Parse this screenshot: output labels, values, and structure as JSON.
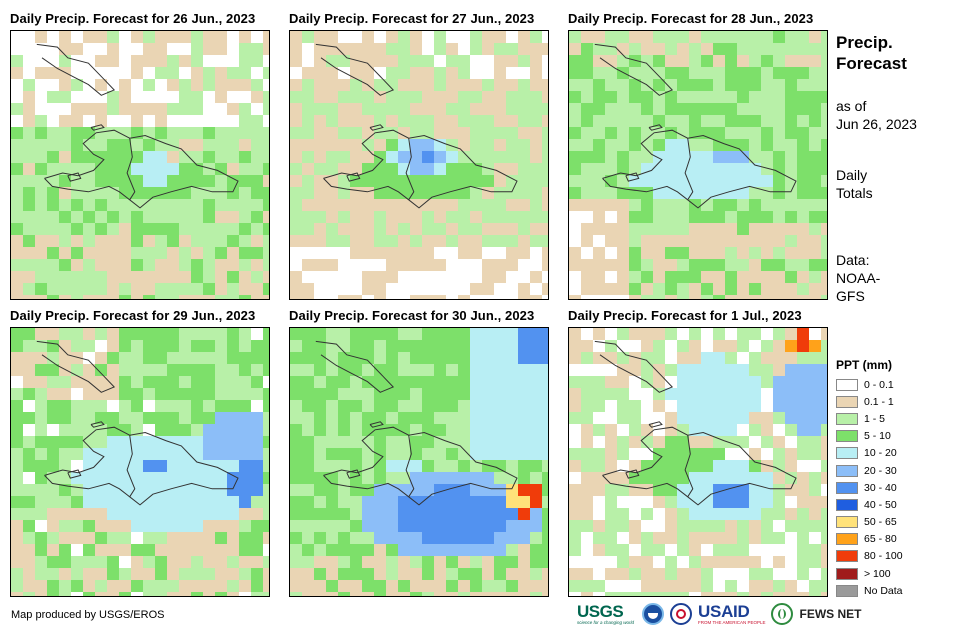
{
  "panels": [
    {
      "title": "Daily Precip. Forecast for 26 Jun., 2023",
      "seed": 11,
      "scenario": "d26"
    },
    {
      "title": "Daily Precip. Forecast for 27 Jun., 2023",
      "seed": 23,
      "scenario": "d27"
    },
    {
      "title": "Daily Precip. Forecast for 28 Jun., 2023",
      "seed": 37,
      "scenario": "d28"
    },
    {
      "title": "Daily Precip. Forecast for 29 Jun., 2023",
      "seed": 41,
      "scenario": "d29"
    },
    {
      "title": "Daily Precip. Forecast for 30 Jun., 2023",
      "seed": 53,
      "scenario": "d30"
    },
    {
      "title": "Daily Precip. Forecast for 1 Jul., 2023",
      "seed": 67,
      "scenario": "d01"
    }
  ],
  "info": {
    "title_line1": "Precip.",
    "title_line2": "Forecast",
    "asof_line1": "as of",
    "asof_line2": "Jun 26, 2023",
    "daily_line1": "Daily",
    "daily_line2": "Totals",
    "data_line1": "Data:",
    "data_line2": "NOAA-",
    "data_line3": "GFS"
  },
  "legend": {
    "title": "PPT (mm)",
    "items": [
      {
        "label": "0 - 0.1",
        "color": "#ffffff"
      },
      {
        "label": "0.1 - 1",
        "color": "#ead5b4"
      },
      {
        "label": "1 - 5",
        "color": "#b8f0a8"
      },
      {
        "label": "5 - 10",
        "color": "#7de06a"
      },
      {
        "label": "10 - 20",
        "color": "#b8eef4"
      },
      {
        "label": "20 - 30",
        "color": "#8cbef8"
      },
      {
        "label": "30 - 40",
        "color": "#5292f0"
      },
      {
        "label": "40 - 50",
        "color": "#1f5ee0"
      },
      {
        "label": "50 - 65",
        "color": "#ffe27a"
      },
      {
        "label": "65 - 80",
        "color": "#ffa21a"
      },
      {
        "label": "80 - 100",
        "color": "#f03c0a"
      },
      {
        "label": "> 100",
        "color": "#a01c1c"
      },
      {
        "label": "No Data",
        "color": "#9a9a9a"
      }
    ]
  },
  "footer": {
    "credit": "Map produced by USGS/EROS",
    "usgs": "USGS",
    "usgs_tagline": "science for a changing world",
    "noaa_icon": "noaa-icon",
    "usaid": "USAID",
    "usaid_tagline": "FROM THE AMERICAN PEOPLE",
    "fews": "FEWS NET"
  }
}
